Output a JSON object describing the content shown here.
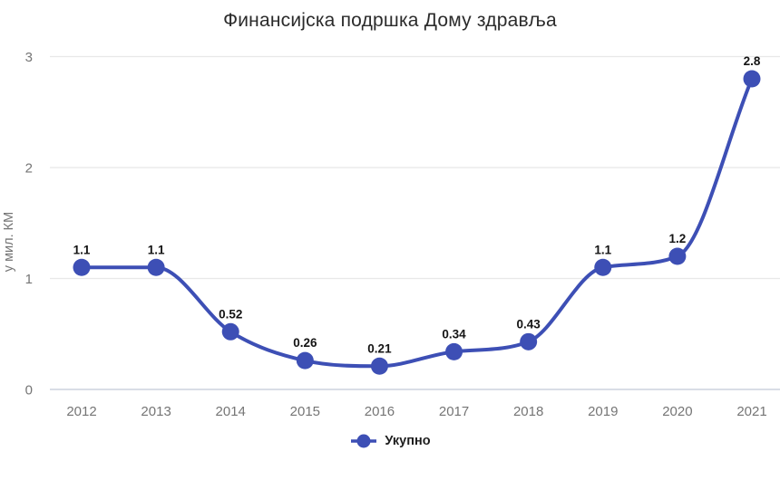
{
  "title": "Финансијска подршка Дому здравља",
  "chart_data": {
    "type": "line",
    "x": [
      2012,
      2013,
      2014,
      2015,
      2016,
      2017,
      2018,
      2019,
      2020,
      2021
    ],
    "series": [
      {
        "name": "Укупно",
        "values": [
          1.1,
          1.1,
          0.52,
          0.26,
          0.21,
          0.34,
          0.43,
          1.1,
          1.2,
          2.8
        ],
        "point_labels": [
          "1.1",
          "1.1",
          "0.52",
          "0.26",
          "0.21",
          "0.34",
          "0.43",
          "1.1",
          "1.2",
          "2.8"
        ]
      }
    ],
    "title": "Финансијска подршка Дому здравља",
    "xlabel": "",
    "ylabel": "у мил. КМ",
    "ylim": [
      0,
      3
    ],
    "yticks": [
      0,
      1,
      2,
      3
    ],
    "xticks": [
      "2012",
      "2013",
      "2014",
      "2015",
      "2016",
      "2017",
      "2018",
      "2019",
      "2020",
      "2021"
    ],
    "grid": true,
    "curve": "smooth",
    "legend_position": "bottom",
    "legend_entries": [
      "Укупно"
    ]
  },
  "colors": {
    "line": "#3d4fb5",
    "grid": "#e8e8e8",
    "zero_line": "#d9dde6",
    "tick_text": "#757575",
    "axis_title_text": "#757575",
    "point_label_text": "#141414",
    "title_text": "#2b2b2b",
    "legend_text": "#1f1f1f"
  }
}
